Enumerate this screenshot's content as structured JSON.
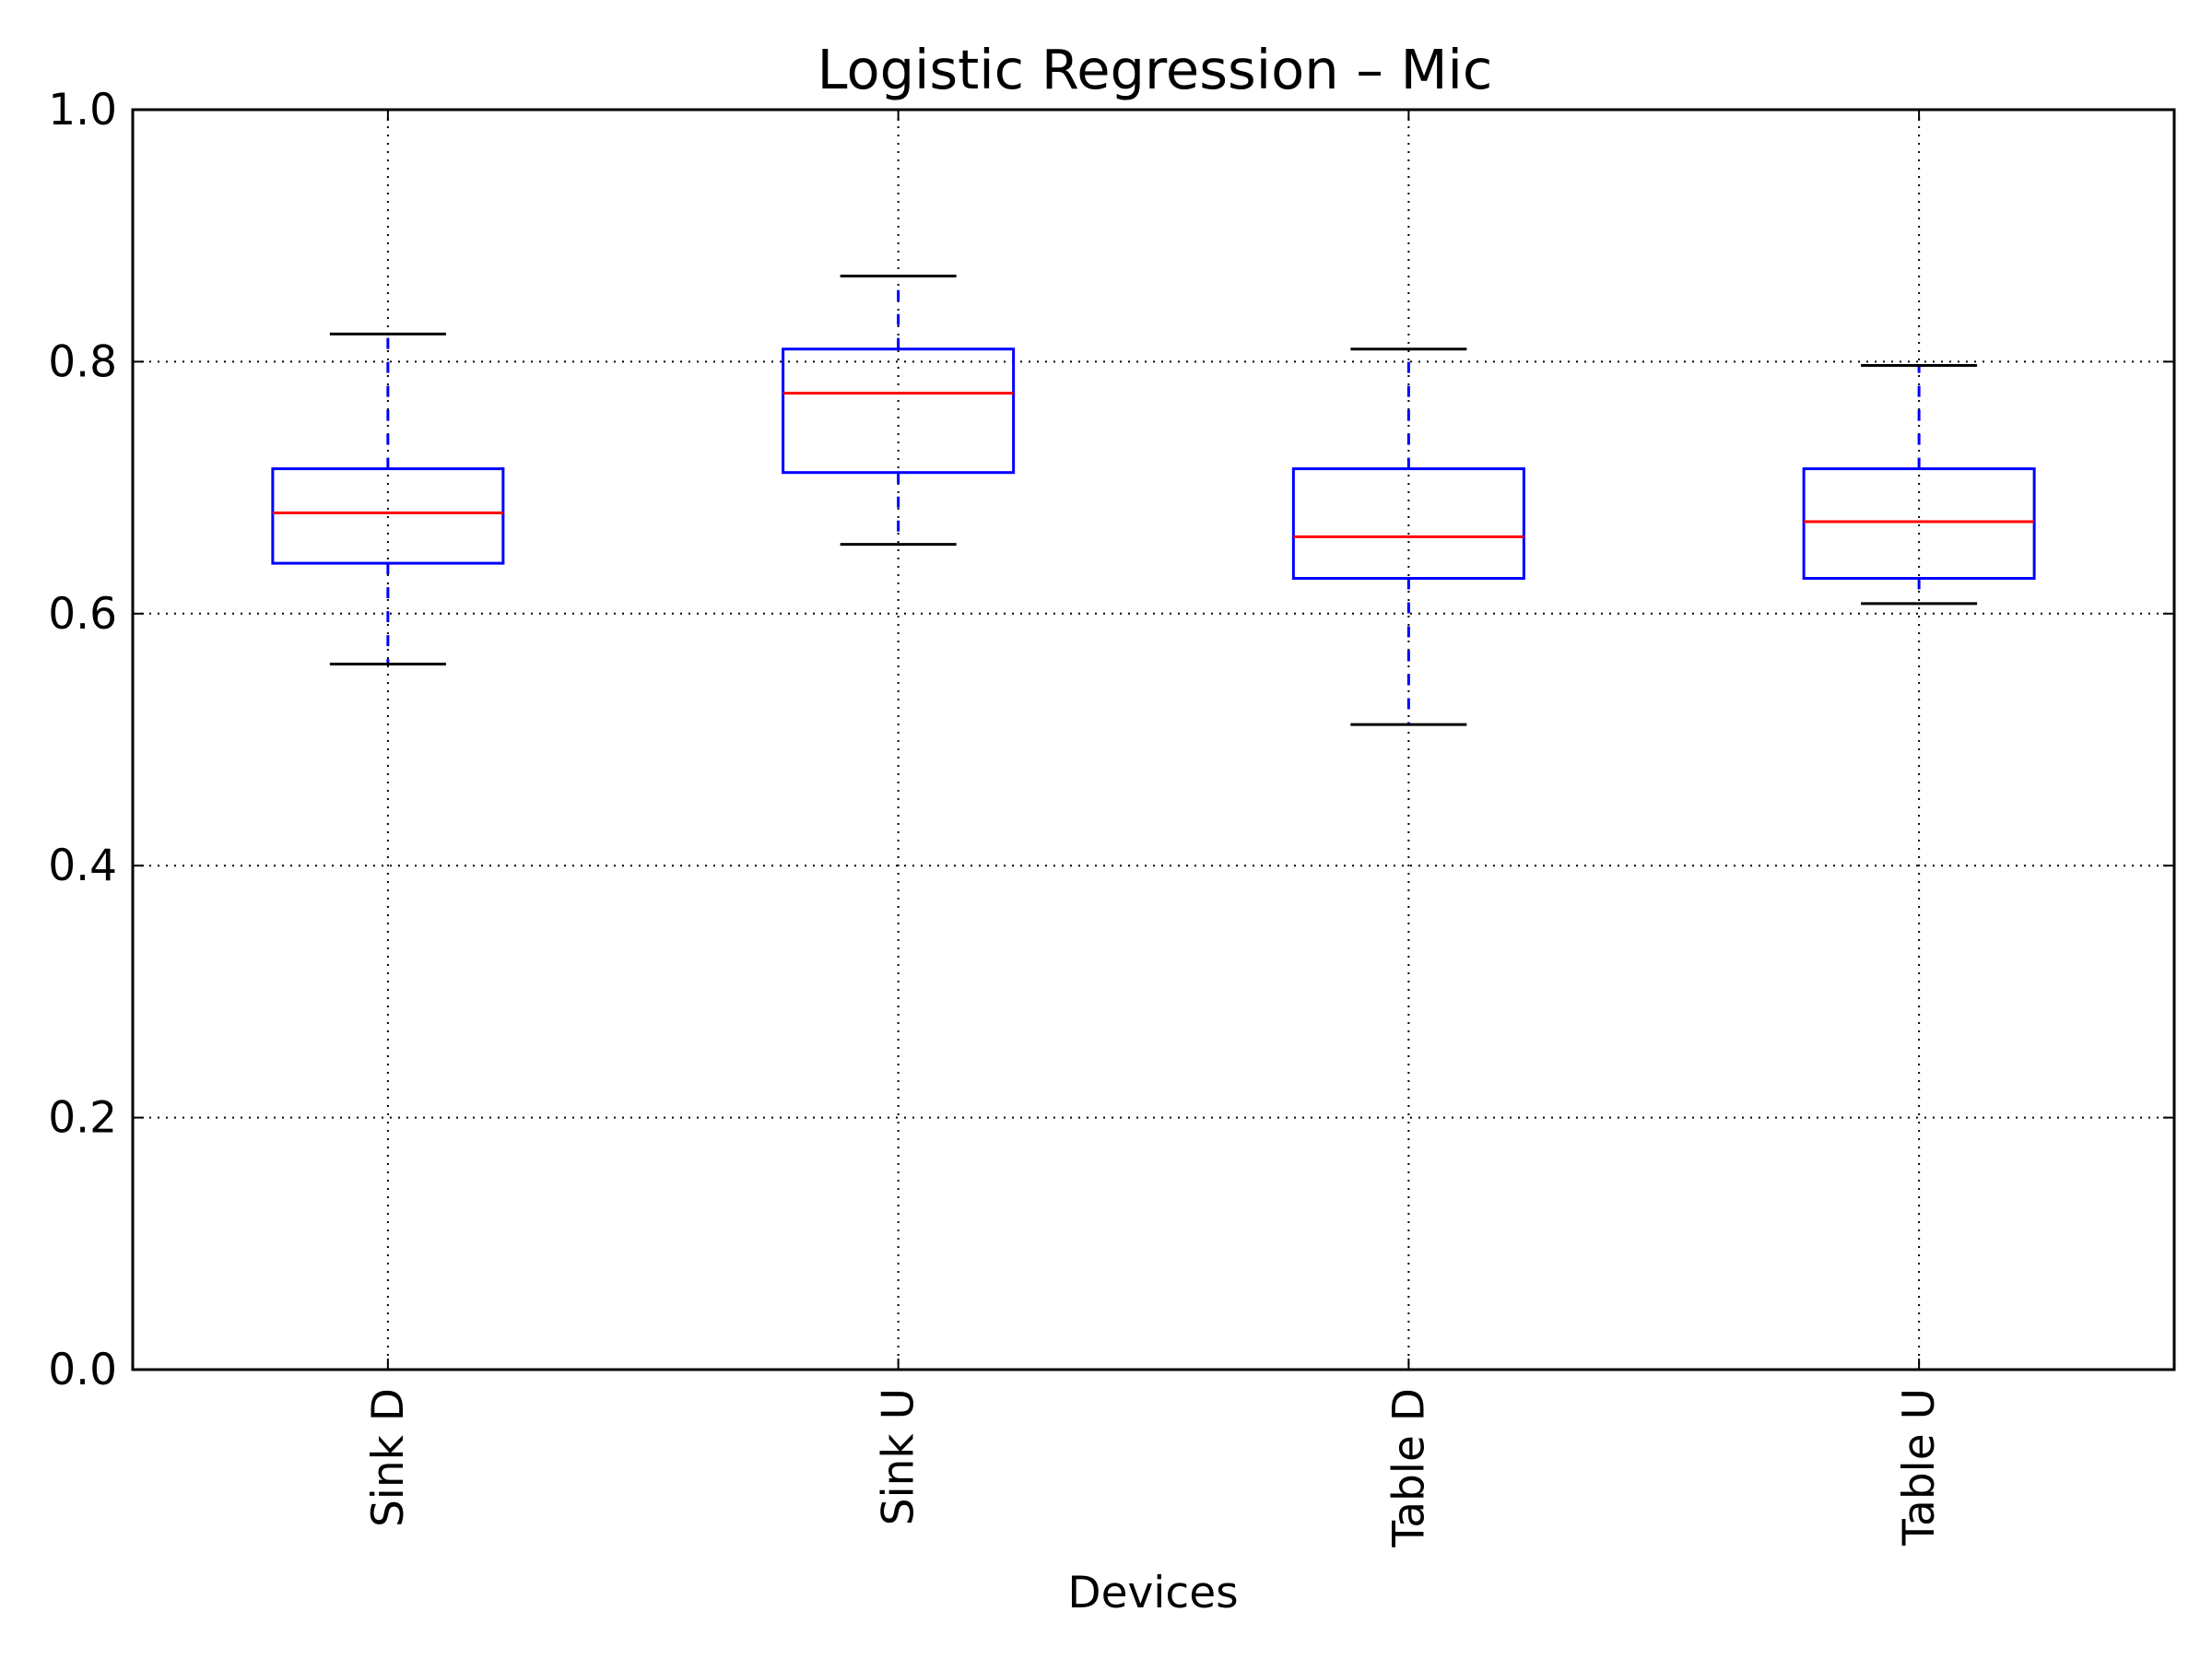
{
  "chart_data": {
    "type": "box",
    "title": "Logistic Regression – Mic",
    "xlabel": "Devices",
    "ylabel": "",
    "ylim": [
      0.0,
      1.0
    ],
    "yticks": [
      "0.0",
      "0.2",
      "0.4",
      "0.6",
      "0.8",
      "1.0"
    ],
    "grid": true,
    "categories": [
      "Sink D",
      "Sink U",
      "Table D",
      "Table U"
    ],
    "boxes": [
      {
        "label": "Sink D",
        "whisker_low": 0.56,
        "q1": 0.64,
        "median": 0.68,
        "q3": 0.715,
        "whisker_high": 0.822
      },
      {
        "label": "Sink U",
        "whisker_low": 0.655,
        "q1": 0.712,
        "median": 0.775,
        "q3": 0.81,
        "whisker_high": 0.868
      },
      {
        "label": "Table D",
        "whisker_low": 0.512,
        "q1": 0.628,
        "median": 0.661,
        "q3": 0.715,
        "whisker_high": 0.81
      },
      {
        "label": "Table U",
        "whisker_low": 0.608,
        "q1": 0.628,
        "median": 0.673,
        "q3": 0.715,
        "whisker_high": 0.797
      }
    ],
    "colors": {
      "box": "#0000ff",
      "median": "#ff0000",
      "whisker": "#0000ff",
      "cap": "#000000",
      "grid": "#000000",
      "axes": "#000000"
    }
  }
}
